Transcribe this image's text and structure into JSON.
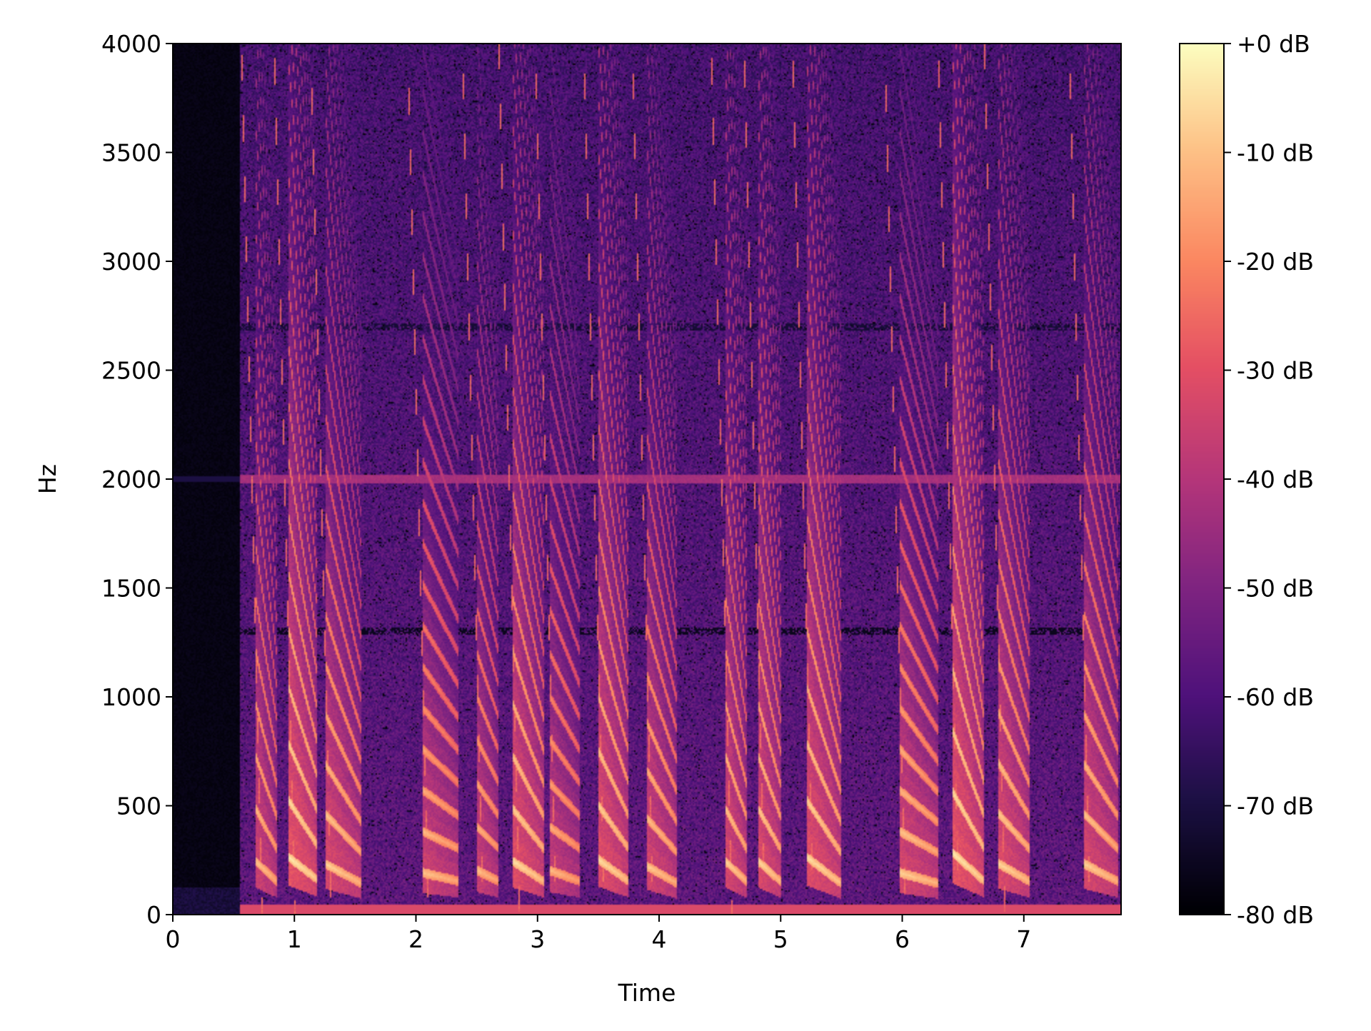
{
  "chart_data": {
    "type": "heatmap",
    "title": "",
    "xlabel": "Time",
    "ylabel": "Hz",
    "xlim": [
      0,
      7.8
    ],
    "ylim": [
      0,
      4000
    ],
    "x_ticks": [
      {
        "value": 0,
        "label": "0"
      },
      {
        "value": 1,
        "label": "1"
      },
      {
        "value": 2,
        "label": "2"
      },
      {
        "value": 3,
        "label": "3"
      },
      {
        "value": 4,
        "label": "4"
      },
      {
        "value": 5,
        "label": "5"
      },
      {
        "value": 6,
        "label": "6"
      },
      {
        "value": 7,
        "label": "7"
      }
    ],
    "y_ticks": [
      {
        "value": 0,
        "label": "0"
      },
      {
        "value": 500,
        "label": "500"
      },
      {
        "value": 1000,
        "label": "1000"
      },
      {
        "value": 1500,
        "label": "1500"
      },
      {
        "value": 2000,
        "label": "2000"
      },
      {
        "value": 2500,
        "label": "2500"
      },
      {
        "value": 3000,
        "label": "3000"
      },
      {
        "value": 3500,
        "label": "3500"
      },
      {
        "value": 4000,
        "label": "4000"
      }
    ],
    "colorbar": {
      "colormap": "magma",
      "range_db": [
        -80,
        0
      ],
      "ticks": [
        {
          "value": 0,
          "label": "+0 dB"
        },
        {
          "value": -10,
          "label": "-10 dB"
        },
        {
          "value": -20,
          "label": "-20 dB"
        },
        {
          "value": -30,
          "label": "-30 dB"
        },
        {
          "value": -40,
          "label": "-40 dB"
        },
        {
          "value": -50,
          "label": "-50 dB"
        },
        {
          "value": -60,
          "label": "-60 dB"
        },
        {
          "value": -70,
          "label": "-70 dB"
        },
        {
          "value": -80,
          "label": "-80 dB"
        }
      ]
    },
    "silent_region_s": [
      0,
      0.55
    ],
    "background_db": -57,
    "horizontal_lines": [
      {
        "hz": 2000,
        "kind": "bright",
        "db": -45
      },
      {
        "hz": 2700,
        "kind": "dark",
        "db": -72
      },
      {
        "hz": 1300,
        "kind": "dark",
        "db": -76
      }
    ],
    "calls": [
      {
        "start": 0.68,
        "end": 0.85,
        "f0_start": 240,
        "f0_end": 150,
        "db": -10
      },
      {
        "start": 0.95,
        "end": 1.18,
        "f0_start": 260,
        "f0_end": 160,
        "db": -4
      },
      {
        "start": 1.25,
        "end": 1.55,
        "f0_start": 230,
        "f0_end": 140,
        "db": -8
      },
      {
        "start": 2.05,
        "end": 2.35,
        "f0_start": 190,
        "f0_end": 150,
        "db": -10
      },
      {
        "start": 2.5,
        "end": 2.68,
        "f0_start": 200,
        "f0_end": 150,
        "db": -11
      },
      {
        "start": 2.8,
        "end": 3.05,
        "f0_start": 240,
        "f0_end": 150,
        "db": -6
      },
      {
        "start": 3.1,
        "end": 3.35,
        "f0_start": 200,
        "f0_end": 150,
        "db": -12
      },
      {
        "start": 3.5,
        "end": 3.75,
        "f0_start": 250,
        "f0_end": 150,
        "db": -6
      },
      {
        "start": 3.9,
        "end": 4.15,
        "f0_start": 220,
        "f0_end": 140,
        "db": -9
      },
      {
        "start": 4.55,
        "end": 4.72,
        "f0_start": 240,
        "f0_end": 150,
        "db": -8
      },
      {
        "start": 4.82,
        "end": 5.0,
        "f0_start": 240,
        "f0_end": 150,
        "db": -7
      },
      {
        "start": 5.22,
        "end": 5.5,
        "f0_start": 260,
        "f0_end": 140,
        "db": -6
      },
      {
        "start": 5.98,
        "end": 6.3,
        "f0_start": 190,
        "f0_end": 140,
        "db": -8
      },
      {
        "start": 6.42,
        "end": 6.68,
        "f0_start": 280,
        "f0_end": 150,
        "db": -4
      },
      {
        "start": 6.8,
        "end": 7.05,
        "f0_start": 230,
        "f0_end": 150,
        "db": -7
      },
      {
        "start": 7.5,
        "end": 7.78,
        "f0_start": 230,
        "f0_end": 150,
        "db": -8
      }
    ]
  }
}
